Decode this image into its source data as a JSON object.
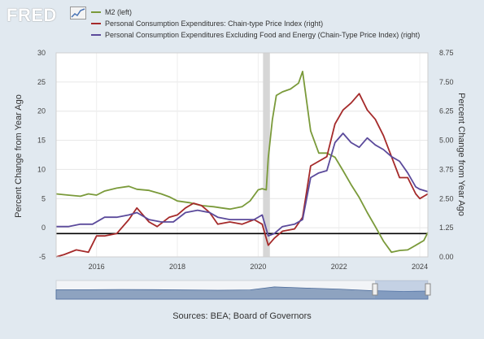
{
  "header": {
    "logo_text": "FRED",
    "logo_icon": "line-chart-icon"
  },
  "legend": [
    {
      "label": "M2 (left)",
      "color": "#7a9a3a"
    },
    {
      "label": "Personal Consumption Expenditures: Chain-type Price Index (right)",
      "color": "#a52a2a"
    },
    {
      "label": "Personal Consumption Expenditures Excluding Food and Energy (Chain-Type Price Index) (right)",
      "color": "#5b4a9b"
    }
  ],
  "source_text": "Sources: BEA; Board of Governors",
  "chart_data": {
    "type": "line",
    "ylabel": "Percent Change from Year Ago",
    "ylabel_right": "Percent Change from Year Ago",
    "ylim": [
      -5,
      30
    ],
    "ylim_right": [
      0,
      8.75
    ],
    "yticks": [
      "30",
      "25",
      "20",
      "15",
      "10",
      "5",
      "0",
      "-5"
    ],
    "yticks_right": [
      "8.75",
      "7.50",
      "6.25",
      "5.00",
      "3.75",
      "2.50",
      "1.25",
      "0.00"
    ],
    "xlim": [
      2015.0,
      2024.2
    ],
    "xticks": [
      "2016",
      "2018",
      "2020",
      "2022",
      "2024"
    ],
    "grid": true,
    "recession_shading": [
      2020.12,
      2020.29
    ],
    "zero_line_right_value": 1.0,
    "series": [
      {
        "name": "M2 (left)",
        "axis": "left",
        "color": "#7a9a3a",
        "x": [
          2015.0,
          2015.3,
          2015.6,
          2015.8,
          2016.0,
          2016.2,
          2016.5,
          2016.8,
          2017.0,
          2017.3,
          2017.6,
          2017.8,
          2018.0,
          2018.3,
          2018.6,
          2018.9,
          2019.1,
          2019.3,
          2019.6,
          2019.8,
          2020.0,
          2020.1,
          2020.2,
          2020.25,
          2020.35,
          2020.45,
          2020.6,
          2020.8,
          2021.0,
          2021.1,
          2021.3,
          2021.5,
          2021.7,
          2021.9,
          2022.1,
          2022.3,
          2022.5,
          2022.7,
          2022.9,
          2023.1,
          2023.3,
          2023.5,
          2023.7,
          2023.9,
          2024.1,
          2024.2
        ],
        "values": [
          5.8,
          5.6,
          5.4,
          5.8,
          5.6,
          6.3,
          6.8,
          7.1,
          6.6,
          6.4,
          5.8,
          5.3,
          4.6,
          4.3,
          3.8,
          3.6,
          3.4,
          3.2,
          3.6,
          4.6,
          6.5,
          6.7,
          6.5,
          12.0,
          18.5,
          22.7,
          23.3,
          23.8,
          24.8,
          26.8,
          16.6,
          12.8,
          12.8,
          12.1,
          9.8,
          7.4,
          5.2,
          2.6,
          0.2,
          -2.3,
          -4.2,
          -3.9,
          -3.8,
          -3.0,
          -2.2,
          -0.8
        ]
      },
      {
        "name": "Personal Consumption Expenditures: Chain-type Price Index (right)",
        "axis": "right",
        "color": "#a52a2a",
        "x": [
          2015.0,
          2015.2,
          2015.5,
          2015.8,
          2016.0,
          2016.2,
          2016.5,
          2016.8,
          2017.0,
          2017.3,
          2017.5,
          2017.8,
          2018.0,
          2018.2,
          2018.4,
          2018.6,
          2018.8,
          2019.0,
          2019.3,
          2019.6,
          2019.9,
          2020.1,
          2020.25,
          2020.4,
          2020.6,
          2020.9,
          2021.1,
          2021.3,
          2021.5,
          2021.7,
          2021.9,
          2022.1,
          2022.3,
          2022.5,
          2022.7,
          2022.9,
          2023.1,
          2023.3,
          2023.5,
          2023.7,
          2023.9,
          2024.0,
          2024.2
        ],
        "values": [
          0.0,
          0.1,
          0.3,
          0.2,
          0.9,
          0.9,
          1.0,
          1.6,
          2.1,
          1.5,
          1.3,
          1.7,
          1.8,
          2.1,
          2.3,
          2.2,
          1.9,
          1.4,
          1.5,
          1.4,
          1.6,
          1.4,
          0.5,
          0.8,
          1.1,
          1.2,
          1.7,
          3.9,
          4.1,
          4.3,
          5.7,
          6.3,
          6.6,
          7.0,
          6.3,
          5.9,
          5.2,
          4.3,
          3.4,
          3.4,
          2.7,
          2.5,
          2.7
        ]
      },
      {
        "name": "Personal Consumption Expenditures Excluding Food and Energy (Chain-Type Price Index) (right)",
        "axis": "right",
        "color": "#5b4a9b",
        "x": [
          2015.0,
          2015.3,
          2015.6,
          2015.9,
          2016.2,
          2016.5,
          2016.8,
          2017.0,
          2017.3,
          2017.6,
          2017.9,
          2018.2,
          2018.5,
          2018.8,
          2019.0,
          2019.3,
          2019.6,
          2019.9,
          2020.1,
          2020.25,
          2020.4,
          2020.6,
          2020.9,
          2021.1,
          2021.3,
          2021.5,
          2021.7,
          2021.9,
          2022.1,
          2022.3,
          2022.5,
          2022.7,
          2022.9,
          2023.1,
          2023.3,
          2023.5,
          2023.7,
          2023.9,
          2024.0,
          2024.2
        ],
        "values": [
          1.3,
          1.3,
          1.4,
          1.4,
          1.7,
          1.7,
          1.8,
          1.9,
          1.6,
          1.5,
          1.5,
          1.9,
          2.0,
          1.9,
          1.7,
          1.6,
          1.6,
          1.6,
          1.8,
          0.9,
          1.0,
          1.3,
          1.4,
          1.6,
          3.4,
          3.6,
          3.7,
          4.9,
          5.3,
          4.9,
          4.7,
          5.1,
          4.8,
          4.6,
          4.3,
          4.1,
          3.6,
          3.0,
          2.9,
          2.8
        ]
      }
    ]
  }
}
